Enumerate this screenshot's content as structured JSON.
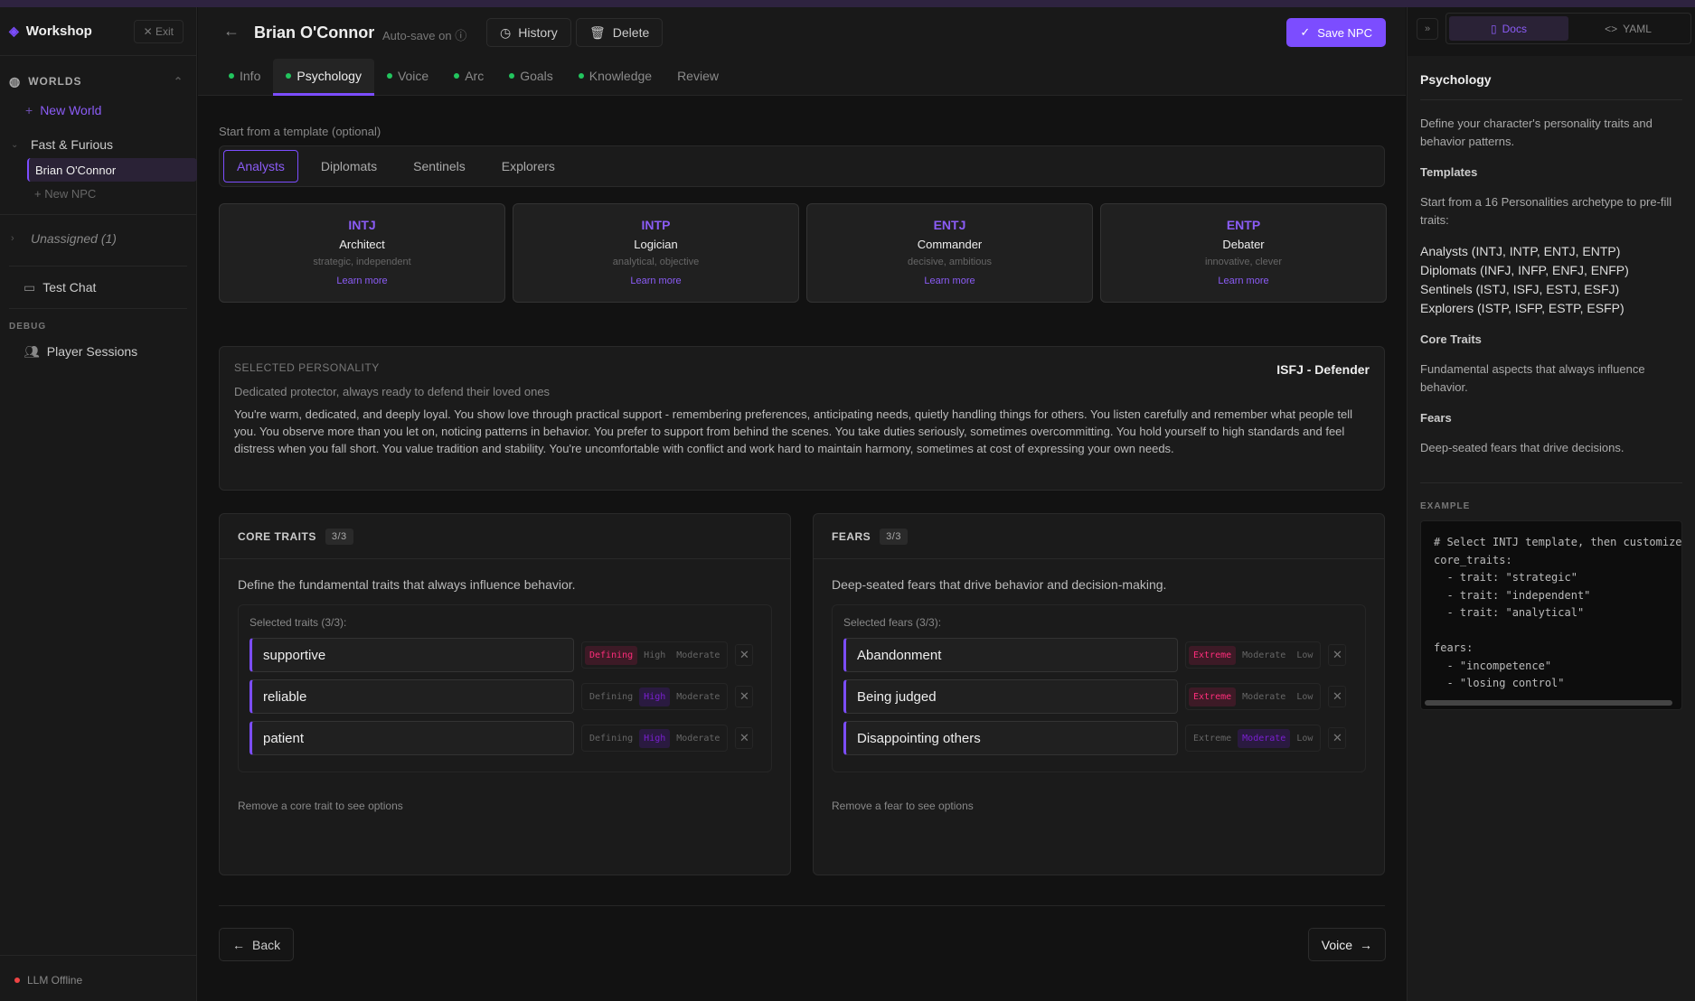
{
  "sidebar": {
    "brand": "Workshop",
    "exit": "Exit",
    "worlds_label": "WORLDS",
    "new_world": "New World",
    "world": "Fast & Furious",
    "npc": "Brian O'Connor",
    "new_npc": "+ New NPC",
    "unassigned": "Unassigned (1)",
    "test_chat": "Test Chat",
    "debug_label": "DEBUG",
    "player_sessions": "Player Sessions",
    "status": "LLM Offline"
  },
  "header": {
    "title": "Brian O'Connor",
    "autosave": "Auto-save on",
    "history": "History",
    "delete": "Delete",
    "save": "Save NPC"
  },
  "tabs": [
    {
      "label": "Info",
      "done": true
    },
    {
      "label": "Psychology",
      "done": true,
      "active": true
    },
    {
      "label": "Voice",
      "done": true
    },
    {
      "label": "Arc",
      "done": true
    },
    {
      "label": "Goals",
      "done": true
    },
    {
      "label": "Knowledge",
      "done": true
    },
    {
      "label": "Review",
      "done": false
    }
  ],
  "template": {
    "label": "Start from a template (optional)",
    "groups": [
      "Analysts",
      "Diplomats",
      "Sentinels",
      "Explorers"
    ],
    "active_group": "Analysts",
    "cards": [
      {
        "code": "INTJ",
        "name": "Architect",
        "desc": "strategic, independent",
        "link": "Learn more"
      },
      {
        "code": "INTP",
        "name": "Logician",
        "desc": "analytical, objective",
        "link": "Learn more"
      },
      {
        "code": "ENTJ",
        "name": "Commander",
        "desc": "decisive, ambitious",
        "link": "Learn more"
      },
      {
        "code": "ENTP",
        "name": "Debater",
        "desc": "innovative, clever",
        "link": "Learn more"
      }
    ]
  },
  "selected": {
    "label": "SELECTED PERSONALITY",
    "type": "ISFJ - Defender",
    "tagline": "Dedicated protector, always ready to defend their loved ones",
    "description": "You're warm, dedicated, and deeply loyal. You show love through practical support - remembering preferences, anticipating needs, quietly handling things for others. You listen carefully and remember what people tell you. You observe more than you let on, noticing patterns in behavior. You prefer to support from behind the scenes. You take duties seriously, sometimes overcommitting. You hold yourself to high standards and feel distress when you fall short. You value tradition and stability. You're uncomfortable with conflict and work hard to maintain harmony, sometimes at cost of expressing your own needs."
  },
  "core_traits": {
    "title": "CORE TRAITS",
    "count": "3/3",
    "desc": "Define the fundamental traits that always influence behavior.",
    "selected_label": "Selected traits (3/3):",
    "levels": [
      "Defining",
      "High",
      "Moderate"
    ],
    "items": [
      {
        "name": "supportive",
        "level": "Defining"
      },
      {
        "name": "reliable",
        "level": "High"
      },
      {
        "name": "patient",
        "level": "High"
      }
    ],
    "hint": "Remove a core trait to see options"
  },
  "fears": {
    "title": "FEARS",
    "count": "3/3",
    "desc": "Deep-seated fears that drive behavior and decision-making.",
    "selected_label": "Selected fears (3/3):",
    "levels": [
      "Extreme",
      "Moderate",
      "Low"
    ],
    "items": [
      {
        "name": "Abandonment",
        "level": "Extreme"
      },
      {
        "name": "Being judged",
        "level": "Extreme"
      },
      {
        "name": "Disappointing others",
        "level": "Moderate"
      }
    ],
    "hint": "Remove a fear to see options"
  },
  "footer": {
    "back": "Back",
    "next": "Voice"
  },
  "docs": {
    "tab_docs": "Docs",
    "tab_yaml": "YAML",
    "title": "Psychology",
    "intro": "Define your character's personality traits and behavior patterns.",
    "templates_h": "Templates",
    "templates_p": "Start from a 16 Personalities archetype to pre-fill traits:",
    "template_list": [
      "Analysts (INTJ, INTP, ENTJ, ENTP)",
      "Diplomats (INFJ, INFP, ENFJ, ENFP)",
      "Sentinels (ISTJ, ISFJ, ESTJ, ESFJ)",
      "Explorers (ISTP, ISFP, ESTP, ESFP)"
    ],
    "core_h": "Core Traits",
    "core_p": "Fundamental aspects that always influence behavior.",
    "fears_h": "Fears",
    "fears_p": "Deep-seated fears that drive decisions.",
    "example_label": "EXAMPLE",
    "example_code": "# Select INTJ template, then customize:\ncore_traits:\n  - trait: \"strategic\"\n  - trait: \"independent\"\n  - trait: \"analytical\"\n\nfears:\n  - \"incompetence\"\n  - \"losing control\""
  },
  "colors": {
    "accent": "#7c4dff",
    "done": "#22c55e",
    "strong": "#ff2d7a",
    "offline": "#ef4444"
  }
}
